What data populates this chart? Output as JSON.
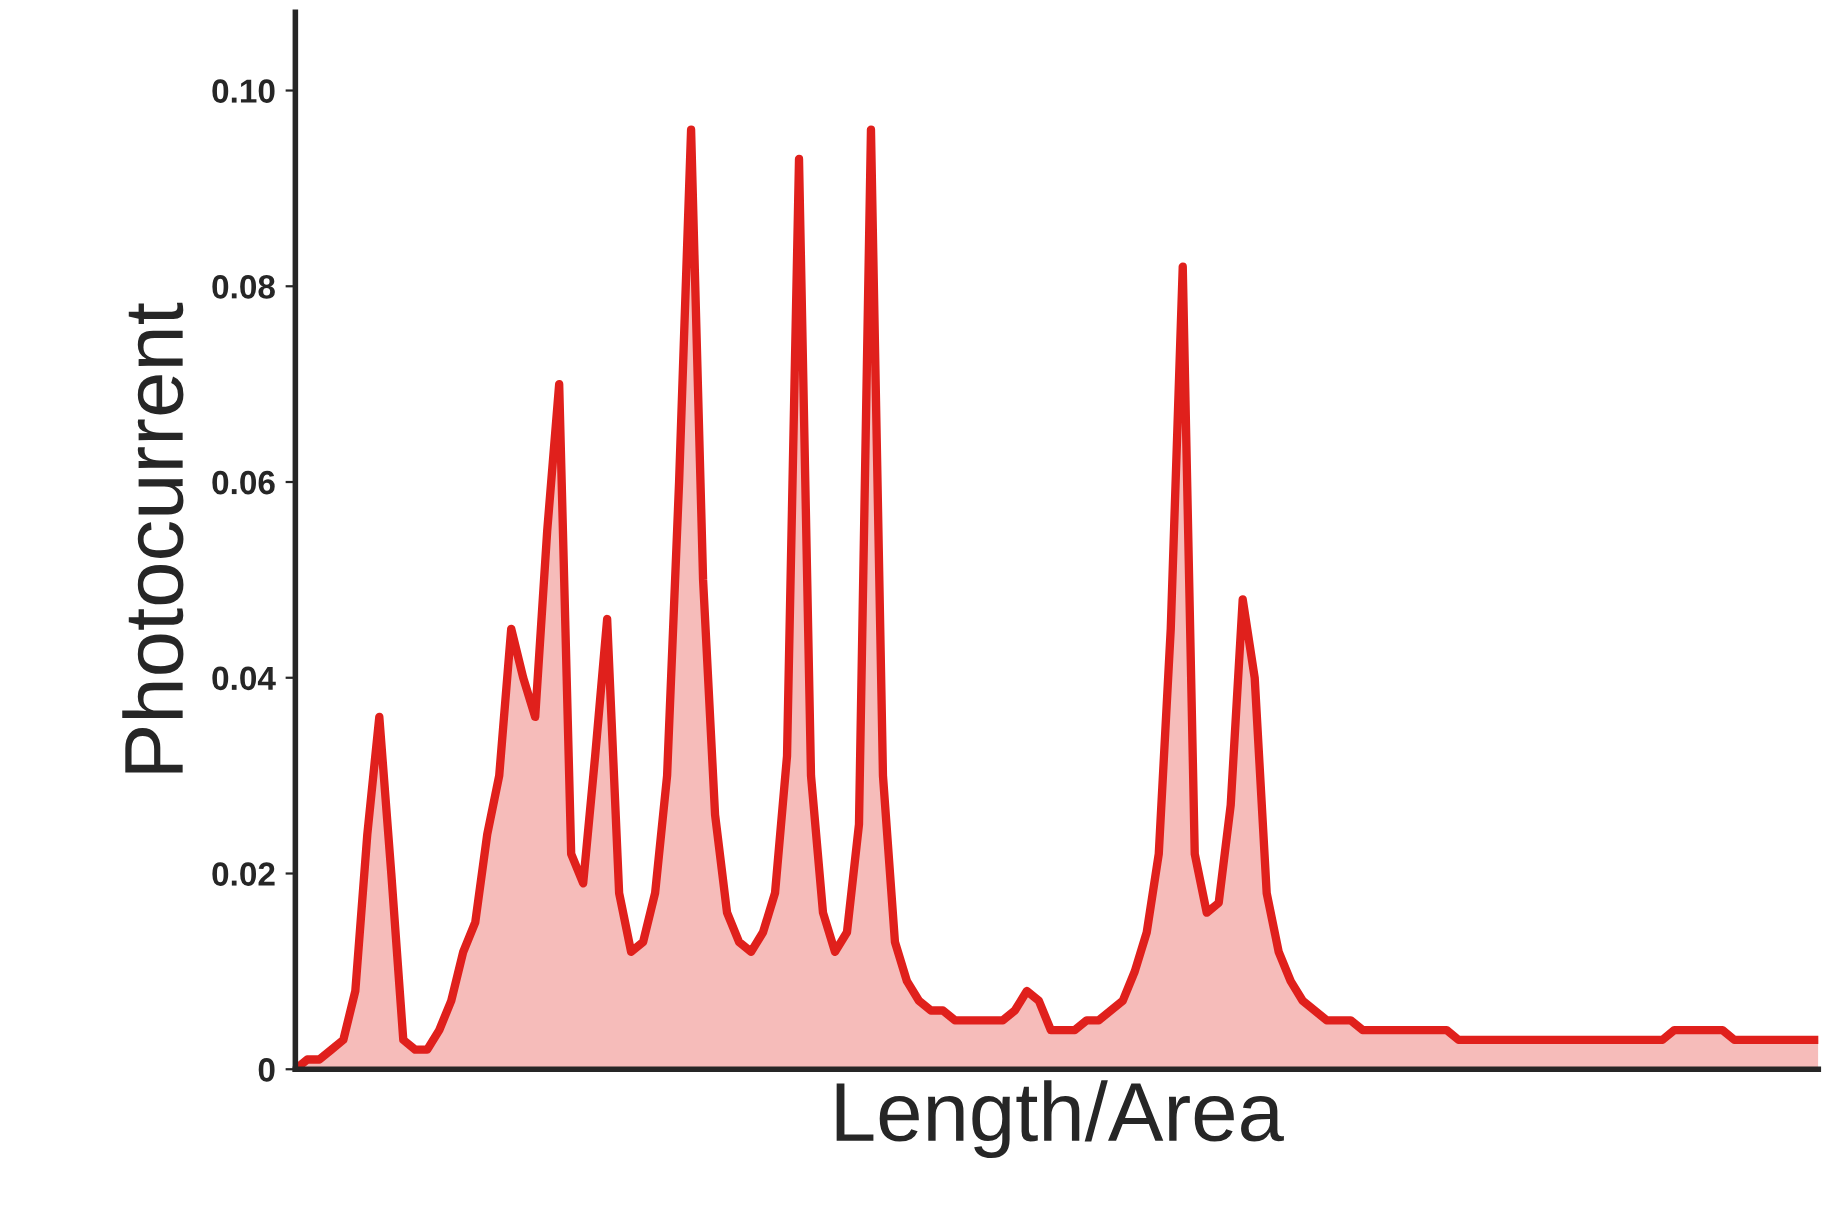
{
  "chart_data": {
    "type": "area",
    "xlabel": "Length/Area",
    "ylabel": "Photocurrent",
    "categories": [
      null,
      null,
      null,
      null,
      null,
      null,
      null,
      null,
      null,
      null,
      null,
      null,
      null,
      null,
      null,
      null,
      null,
      null,
      null,
      null,
      null,
      null,
      null,
      null,
      null,
      null,
      null,
      null,
      null,
      null,
      null,
      null,
      null,
      null,
      null,
      null,
      null,
      null,
      null,
      null,
      null,
      null,
      null,
      null,
      null,
      null,
      null,
      null,
      null,
      null,
      null,
      null,
      null,
      null,
      null,
      null,
      null,
      null,
      null,
      null,
      null,
      null,
      null,
      null,
      null,
      null,
      null,
      null,
      null,
      null,
      null,
      null,
      null,
      null,
      null,
      null,
      null,
      null,
      null,
      null,
      null,
      null,
      null,
      null,
      null,
      null,
      null,
      null,
      null,
      null,
      null,
      null,
      null,
      null,
      null,
      null,
      null,
      null,
      null,
      null,
      null,
      null,
      null,
      null,
      null,
      null,
      null,
      null,
      null,
      null,
      null,
      null,
      null,
      null,
      null,
      null,
      null,
      null,
      null,
      null,
      null,
      null,
      null,
      null,
      null,
      null,
      null,
      null
    ],
    "series": [
      {
        "color": "#e0201c",
        "values": [
          0.0,
          0.001,
          0.001,
          0.002,
          0.003,
          0.008,
          0.024,
          0.036,
          0.02,
          0.003,
          0.002,
          0.002,
          0.004,
          0.007,
          0.012,
          0.015,
          0.024,
          0.03,
          0.045,
          0.04,
          0.036,
          0.055,
          0.07,
          0.022,
          0.019,
          0.032,
          0.046,
          0.018,
          0.012,
          0.013,
          0.018,
          0.03,
          0.06,
          0.096,
          0.05,
          0.026,
          0.016,
          0.013,
          0.012,
          0.014,
          0.018,
          0.032,
          0.093,
          0.03,
          0.016,
          0.012,
          0.014,
          0.025,
          0.096,
          0.03,
          0.013,
          0.009,
          0.007,
          0.006,
          0.006,
          0.005,
          0.005,
          0.005,
          0.005,
          0.005,
          0.006,
          0.008,
          0.007,
          0.004,
          0.004,
          0.004,
          0.005,
          0.005,
          0.006,
          0.007,
          0.01,
          0.014,
          0.022,
          0.045,
          0.082,
          0.022,
          0.016,
          0.017,
          0.027,
          0.048,
          0.04,
          0.018,
          0.012,
          0.009,
          0.007,
          0.006,
          0.005,
          0.005,
          0.005,
          0.004,
          0.004,
          0.004,
          0.004,
          0.004,
          0.004,
          0.004,
          0.004,
          0.003,
          0.003,
          0.003,
          0.003,
          0.003,
          0.003,
          0.003,
          0.003,
          0.003,
          0.003,
          0.003,
          0.003,
          0.003,
          0.003,
          0.003,
          0.003,
          0.003,
          0.003,
          0.004,
          0.004,
          0.004,
          0.004,
          0.004,
          0.003,
          0.003,
          0.003,
          0.003,
          0.003,
          0.003,
          0.003,
          0.003
        ]
      }
    ],
    "ylim": [
      0,
      0.108
    ],
    "yticks": [
      0,
      0.02,
      0.04,
      0.06,
      0.08,
      {
        "value": 0.1,
        "label": "0.10"
      }
    ],
    "tick_labels": "y",
    "grid": false,
    "legend": false
  }
}
